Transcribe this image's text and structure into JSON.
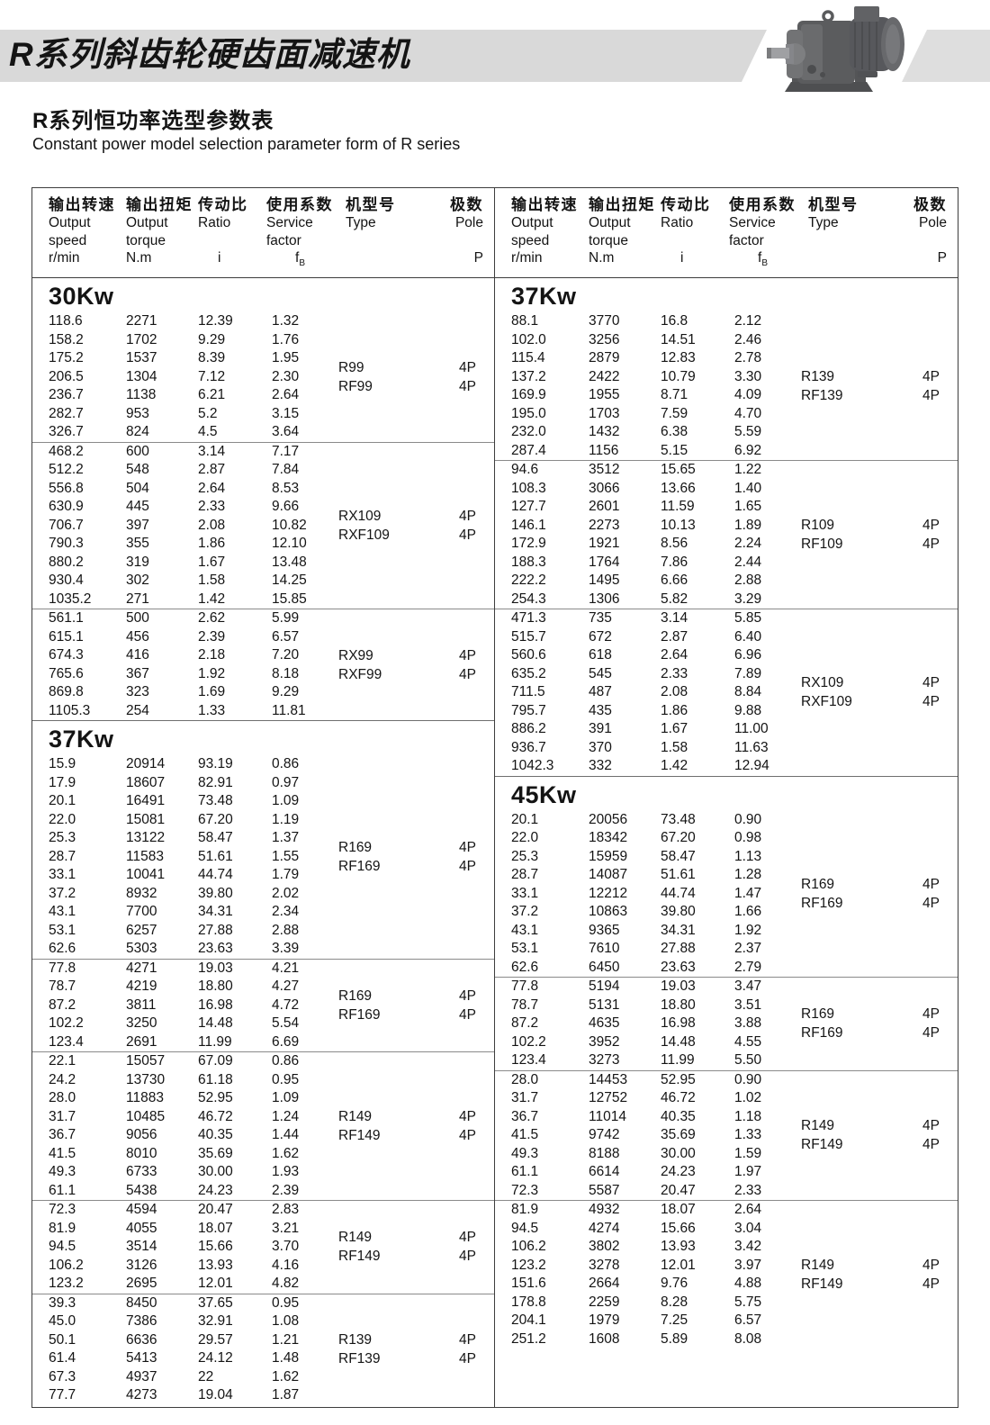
{
  "banner": {
    "title": "R系列斜齿轮硬齿面减速机"
  },
  "page": {
    "title_zh": "R系列恒功率选型参数表",
    "title_en": "Constant power model selection parameter form of R series"
  },
  "table": {
    "header": {
      "speed": {
        "zh": "输出转速",
        "en1": "Output",
        "en2": "speed",
        "unit": "r/min"
      },
      "torque": {
        "zh": "输出扭矩",
        "en1": "Output",
        "en2": "torque",
        "unit": "N.m"
      },
      "ratio": {
        "zh": "传动比",
        "en1": "Ratio",
        "unit": "i"
      },
      "factor": {
        "zh": "使用系数",
        "en1": "Service",
        "en2": "factor",
        "unit_f": "f",
        "unit_sub": "B"
      },
      "type": {
        "zh": "机型号",
        "en1": "Type"
      },
      "pole": {
        "zh": "极数",
        "en1": "Pole",
        "unit": "P"
      }
    },
    "left_sections": [
      {
        "label": "30Kw",
        "groups": [
          {
            "rows": [
              [
                "118.6",
                "2271",
                "12.39",
                "1.32"
              ],
              [
                "158.2",
                "1702",
                "9.29",
                "1.76"
              ],
              [
                "175.2",
                "1537",
                "8.39",
                "1.95"
              ],
              [
                "206.5",
                "1304",
                "7.12",
                "2.30"
              ],
              [
                "236.7",
                "1138",
                "6.21",
                "2.64"
              ],
              [
                "282.7",
                "953",
                "5.2",
                "3.15"
              ],
              [
                "326.7",
                "824",
                "4.5",
                "3.64"
              ]
            ],
            "types": [
              "R99",
              "RF99"
            ],
            "poles": [
              "4P",
              "4P"
            ]
          },
          {
            "rows": [
              [
                "468.2",
                "600",
                "3.14",
                "7.17"
              ],
              [
                "512.2",
                "548",
                "2.87",
                "7.84"
              ],
              [
                "556.8",
                "504",
                "2.64",
                "8.53"
              ],
              [
                "630.9",
                "445",
                "2.33",
                "9.66"
              ],
              [
                "706.7",
                "397",
                "2.08",
                "10.82"
              ],
              [
                "790.3",
                "355",
                "1.86",
                "12.10"
              ],
              [
                "880.2",
                "319",
                "1.67",
                "13.48"
              ],
              [
                "930.4",
                "302",
                "1.58",
                "14.25"
              ],
              [
                "1035.2",
                "271",
                "1.42",
                "15.85"
              ]
            ],
            "types": [
              "RX109",
              "RXF109"
            ],
            "poles": [
              "4P",
              "4P"
            ]
          },
          {
            "rows": [
              [
                "561.1",
                "500",
                "2.62",
                "5.99"
              ],
              [
                "615.1",
                "456",
                "2.39",
                "6.57"
              ],
              [
                "674.3",
                "416",
                "2.18",
                "7.20"
              ],
              [
                "765.6",
                "367",
                "1.92",
                "8.18"
              ],
              [
                "869.8",
                "323",
                "1.69",
                "9.29"
              ],
              [
                "1105.3",
                "254",
                "1.33",
                "11.81"
              ]
            ],
            "types": [
              "RX99",
              "RXF99"
            ],
            "poles": [
              "4P",
              "4P"
            ]
          }
        ]
      },
      {
        "label": "37Kw",
        "groups": [
          {
            "rows": [
              [
                "15.9",
                "20914",
                "93.19",
                "0.86"
              ],
              [
                "17.9",
                "18607",
                "82.91",
                "0.97"
              ],
              [
                "20.1",
                "16491",
                "73.48",
                "1.09"
              ],
              [
                "22.0",
                "15081",
                "67.20",
                "1.19"
              ],
              [
                "25.3",
                "13122",
                "58.47",
                "1.37"
              ],
              [
                "28.7",
                "11583",
                "51.61",
                "1.55"
              ],
              [
                "33.1",
                "10041",
                "44.74",
                "1.79"
              ],
              [
                "37.2",
                "8932",
                "39.80",
                "2.02"
              ],
              [
                "43.1",
                "7700",
                "34.31",
                "2.34"
              ],
              [
                "53.1",
                "6257",
                "27.88",
                "2.88"
              ],
              [
                "62.6",
                "5303",
                "23.63",
                "3.39"
              ]
            ],
            "types": [
              "R169",
              "RF169"
            ],
            "poles": [
              "4P",
              "4P"
            ]
          },
          {
            "rows": [
              [
                "77.8",
                "4271",
                "19.03",
                "4.21"
              ],
              [
                "78.7",
                "4219",
                "18.80",
                "4.27"
              ],
              [
                "87.2",
                "3811",
                "16.98",
                "4.72"
              ],
              [
                "102.2",
                "3250",
                "14.48",
                "5.54"
              ],
              [
                "123.4",
                "2691",
                "11.99",
                "6.69"
              ]
            ],
            "types": [
              "R169",
              "RF169"
            ],
            "poles": [
              "4P",
              "4P"
            ]
          },
          {
            "rows": [
              [
                "22.1",
                "15057",
                "67.09",
                "0.86"
              ],
              [
                "24.2",
                "13730",
                "61.18",
                "0.95"
              ],
              [
                "28.0",
                "11883",
                "52.95",
                "1.09"
              ],
              [
                "31.7",
                "10485",
                "46.72",
                "1.24"
              ],
              [
                "36.7",
                "9056",
                "40.35",
                "1.44"
              ],
              [
                "41.5",
                "8010",
                "35.69",
                "1.62"
              ],
              [
                "49.3",
                "6733",
                "30.00",
                "1.93"
              ],
              [
                "61.1",
                "5438",
                "24.23",
                "2.39"
              ]
            ],
            "types": [
              "R149",
              "RF149"
            ],
            "poles": [
              "4P",
              "4P"
            ]
          },
          {
            "rows": [
              [
                "72.3",
                "4594",
                "20.47",
                "2.83"
              ],
              [
                "81.9",
                "4055",
                "18.07",
                "3.21"
              ],
              [
                "94.5",
                "3514",
                "15.66",
                "3.70"
              ],
              [
                "106.2",
                "3126",
                "13.93",
                "4.16"
              ],
              [
                "123.2",
                "2695",
                "12.01",
                "4.82"
              ]
            ],
            "types": [
              "R149",
              "RF149"
            ],
            "poles": [
              "4P",
              "4P"
            ]
          },
          {
            "rows": [
              [
                "39.3",
                "8450",
                "37.65",
                "0.95"
              ],
              [
                "45.0",
                "7386",
                "32.91",
                "1.08"
              ],
              [
                "50.1",
                "6636",
                "29.57",
                "1.21"
              ],
              [
                "61.4",
                "5413",
                "24.12",
                "1.48"
              ],
              [
                "67.3",
                "4937",
                "22",
                "1.62"
              ],
              [
                "77.7",
                "4273",
                "19.04",
                "1.87"
              ]
            ],
            "types": [
              "R139",
              "RF139"
            ],
            "poles": [
              "4P",
              "4P"
            ]
          }
        ]
      }
    ],
    "right_sections": [
      {
        "label": "37Kw",
        "groups": [
          {
            "rows": [
              [
                "88.1",
                "3770",
                "16.8",
                "2.12"
              ],
              [
                "102.0",
                "3256",
                "14.51",
                "2.46"
              ],
              [
                "115.4",
                "2879",
                "12.83",
                "2.78"
              ],
              [
                "137.2",
                "2422",
                "10.79",
                "3.30"
              ],
              [
                "169.9",
                "1955",
                "8.71",
                "4.09"
              ],
              [
                "195.0",
                "1703",
                "7.59",
                "4.70"
              ],
              [
                "232.0",
                "1432",
                "6.38",
                "5.59"
              ],
              [
                "287.4",
                "1156",
                "5.15",
                "6.92"
              ]
            ],
            "types": [
              "R139",
              "RF139"
            ],
            "poles": [
              "4P",
              "4P"
            ]
          },
          {
            "rows": [
              [
                "94.6",
                "3512",
                "15.65",
                "1.22"
              ],
              [
                "108.3",
                "3066",
                "13.66",
                "1.40"
              ],
              [
                "127.7",
                "2601",
                "11.59",
                "1.65"
              ],
              [
                "146.1",
                "2273",
                "10.13",
                "1.89"
              ],
              [
                "172.9",
                "1921",
                "8.56",
                "2.24"
              ],
              [
                "188.3",
                "1764",
                "7.86",
                "2.44"
              ],
              [
                "222.2",
                "1495",
                "6.66",
                "2.88"
              ],
              [
                "254.3",
                "1306",
                "5.82",
                "3.29"
              ]
            ],
            "types": [
              "R109",
              "RF109"
            ],
            "poles": [
              "4P",
              "4P"
            ]
          },
          {
            "rows": [
              [
                "471.3",
                "735",
                "3.14",
                "5.85"
              ],
              [
                "515.7",
                "672",
                "2.87",
                "6.40"
              ],
              [
                "560.6",
                "618",
                "2.64",
                "6.96"
              ],
              [
                "635.2",
                "545",
                "2.33",
                "7.89"
              ],
              [
                "711.5",
                "487",
                "2.08",
                "8.84"
              ],
              [
                "795.7",
                "435",
                "1.86",
                "9.88"
              ],
              [
                "886.2",
                "391",
                "1.67",
                "11.00"
              ],
              [
                "936.7",
                "370",
                "1.58",
                "11.63"
              ],
              [
                "1042.3",
                "332",
                "1.42",
                "12.94"
              ]
            ],
            "types": [
              "RX109",
              "RXF109"
            ],
            "poles": [
              "4P",
              "4P"
            ]
          }
        ]
      },
      {
        "label": "45Kw",
        "groups": [
          {
            "rows": [
              [
                "20.1",
                "20056",
                "73.48",
                "0.90"
              ],
              [
                "22.0",
                "18342",
                "67.20",
                "0.98"
              ],
              [
                "25.3",
                "15959",
                "58.47",
                "1.13"
              ],
              [
                "28.7",
                "14087",
                "51.61",
                "1.28"
              ],
              [
                "33.1",
                "12212",
                "44.74",
                "1.47"
              ],
              [
                "37.2",
                "10863",
                "39.80",
                "1.66"
              ],
              [
                "43.1",
                "9365",
                "34.31",
                "1.92"
              ],
              [
                "53.1",
                "7610",
                "27.88",
                "2.37"
              ],
              [
                "62.6",
                "6450",
                "23.63",
                "2.79"
              ]
            ],
            "types": [
              "R169",
              "RF169"
            ],
            "poles": [
              "4P",
              "4P"
            ]
          },
          {
            "rows": [
              [
                "77.8",
                "5194",
                "19.03",
                "3.47"
              ],
              [
                "78.7",
                "5131",
                "18.80",
                "3.51"
              ],
              [
                "87.2",
                "4635",
                "16.98",
                "3.88"
              ],
              [
                "102.2",
                "3952",
                "14.48",
                "4.55"
              ],
              [
                "123.4",
                "3273",
                "11.99",
                "5.50"
              ]
            ],
            "types": [
              "R169",
              "RF169"
            ],
            "poles": [
              "4P",
              "4P"
            ]
          },
          {
            "rows": [
              [
                "28.0",
                "14453",
                "52.95",
                "0.90"
              ],
              [
                "31.7",
                "12752",
                "46.72",
                "1.02"
              ],
              [
                "36.7",
                "11014",
                "40.35",
                "1.18"
              ],
              [
                "41.5",
                "9742",
                "35.69",
                "1.33"
              ],
              [
                "49.3",
                "8188",
                "30.00",
                "1.59"
              ],
              [
                "61.1",
                "6614",
                "24.23",
                "1.97"
              ],
              [
                "72.3",
                "5587",
                "20.47",
                "2.33"
              ]
            ],
            "types": [
              "R149",
              "RF149"
            ],
            "poles": [
              "4P",
              "4P"
            ]
          },
          {
            "rows": [
              [
                "81.9",
                "4932",
                "18.07",
                "2.64"
              ],
              [
                "94.5",
                "4274",
                "15.66",
                "3.04"
              ],
              [
                "106.2",
                "3802",
                "13.93",
                "3.42"
              ],
              [
                "123.2",
                "3278",
                "12.01",
                "3.97"
              ],
              [
                "151.6",
                "2664",
                "9.76",
                "4.88"
              ],
              [
                "178.8",
                "2259",
                "8.28",
                "5.75"
              ],
              [
                "204.1",
                "1979",
                "7.25",
                "6.57"
              ],
              [
                "251.2",
                "1608",
                "5.89",
                "8.08"
              ]
            ],
            "types": [
              "R149",
              "RF149"
            ],
            "poles": [
              "4P",
              "4P"
            ]
          }
        ]
      }
    ]
  }
}
